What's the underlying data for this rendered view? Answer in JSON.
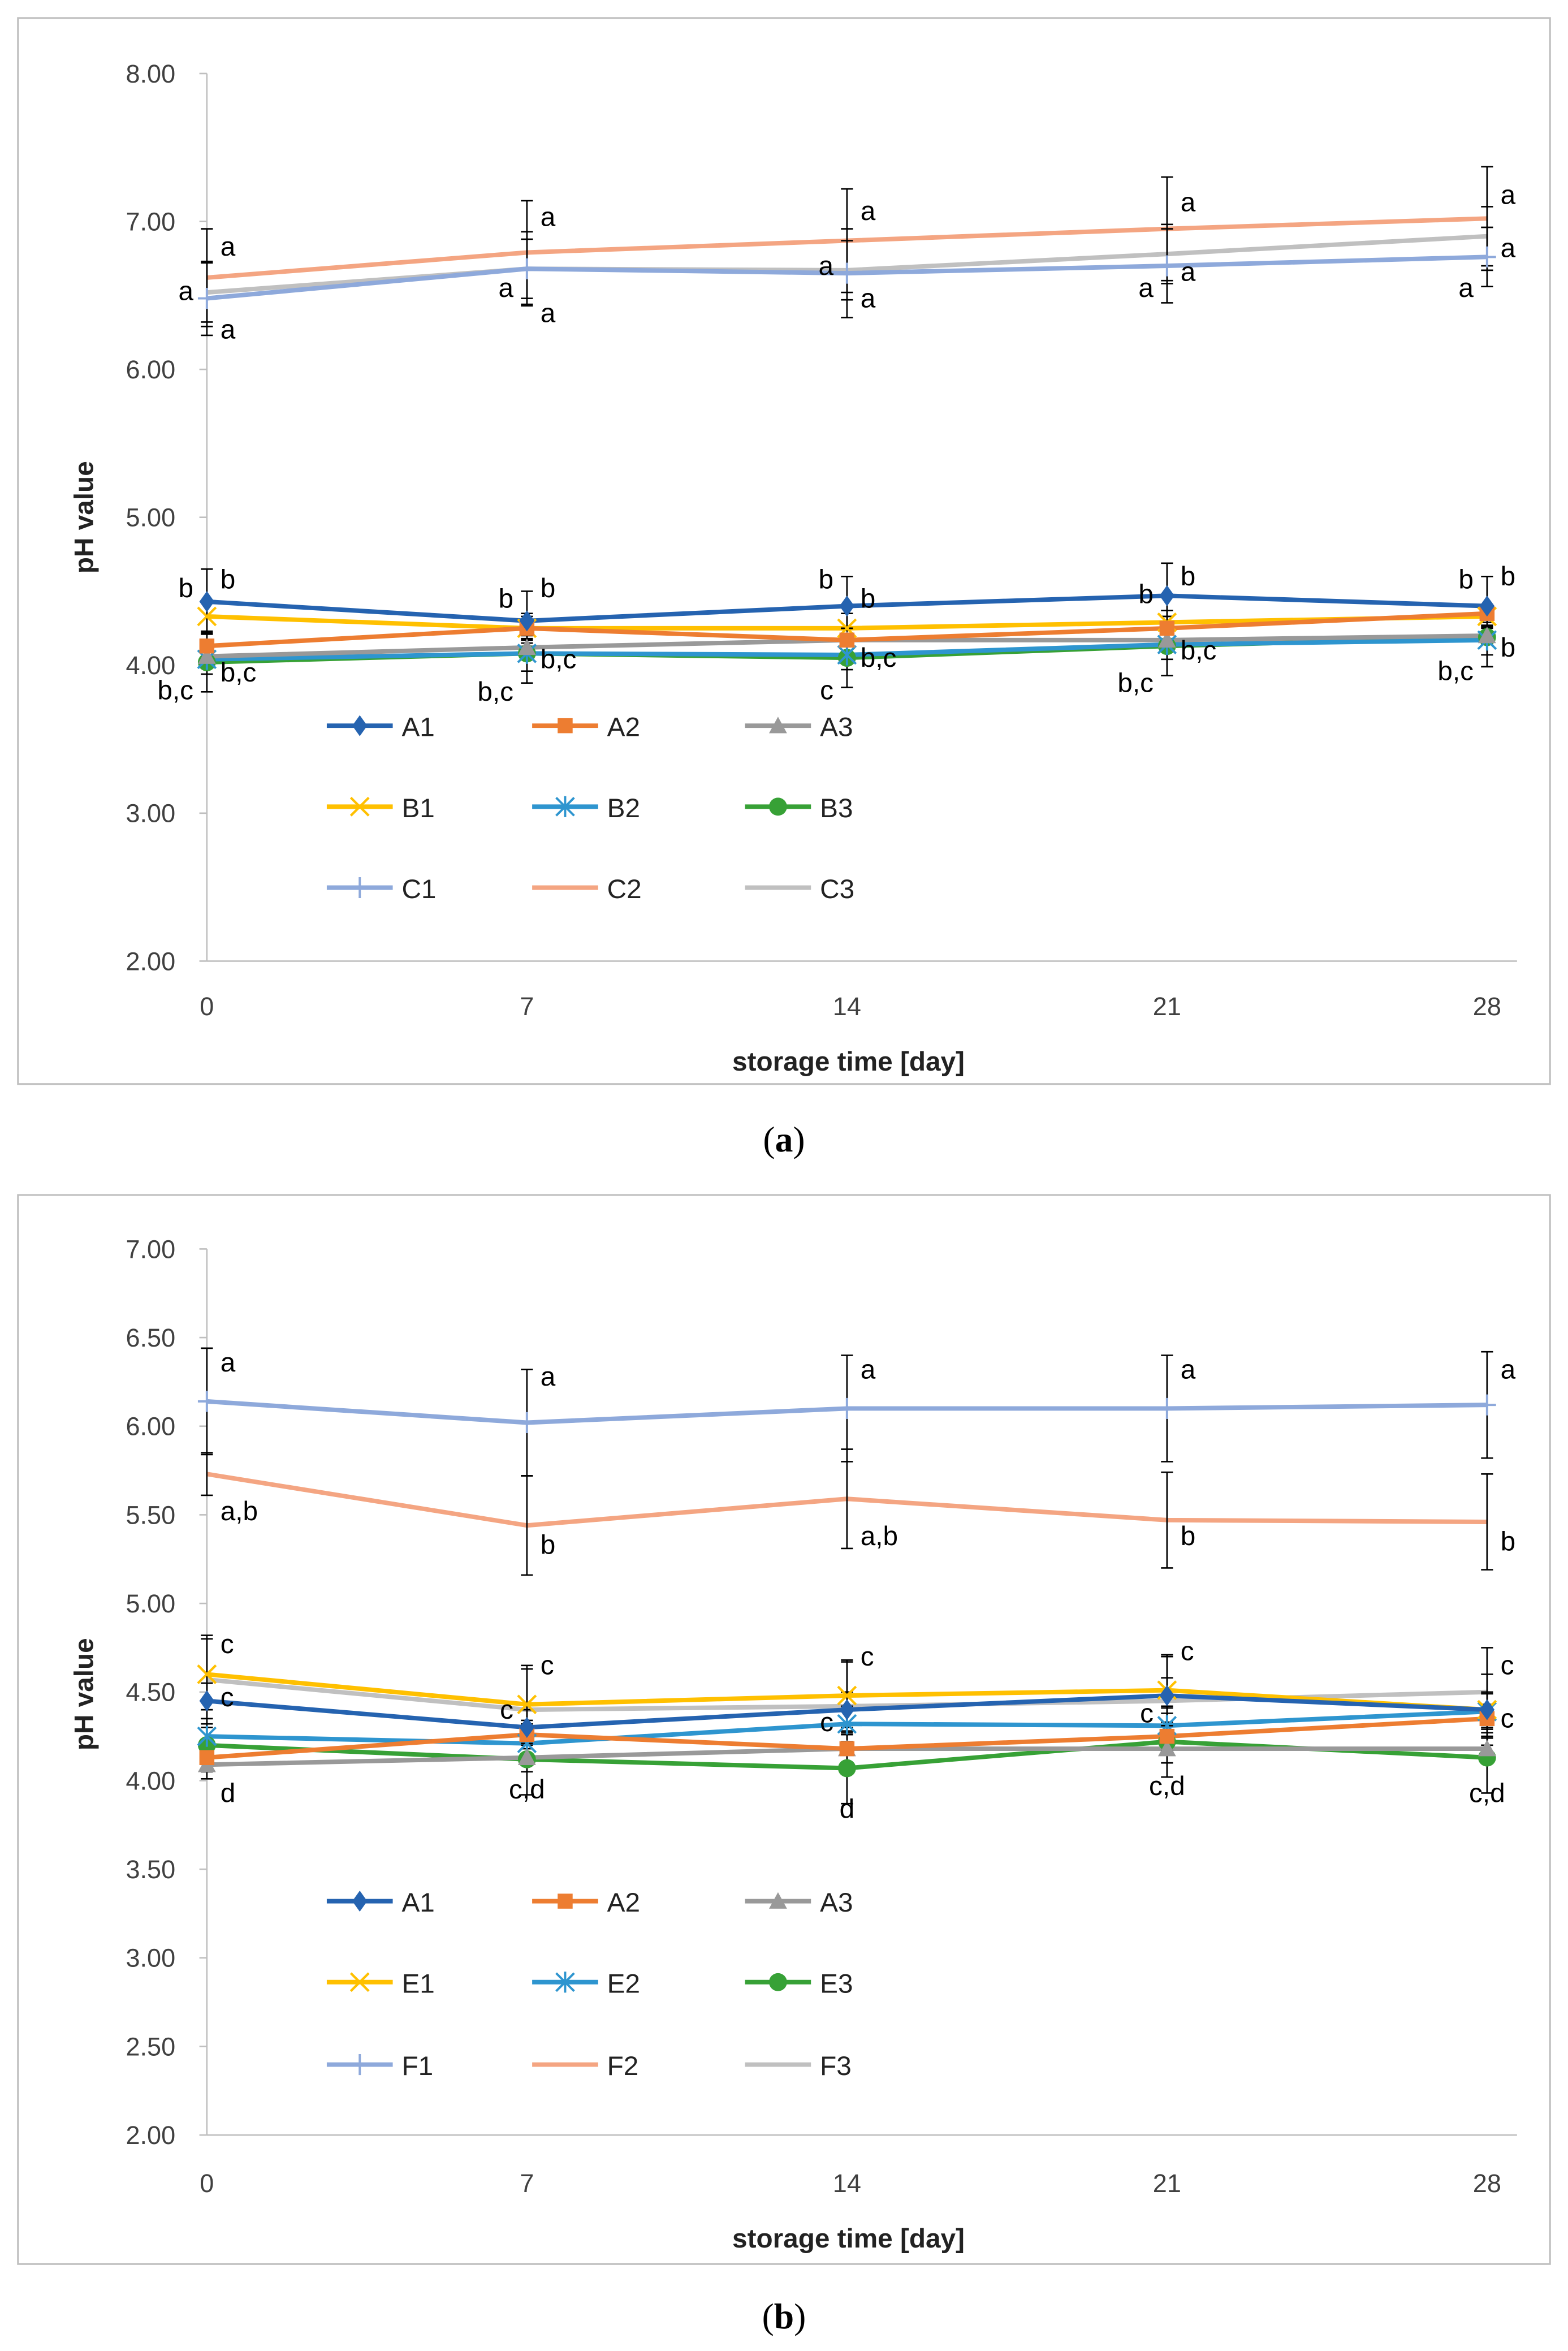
{
  "chart_data": [
    {
      "type": "line",
      "panel_caption": "(a)",
      "caption_letter": "a",
      "xlabel": "storage time [day]",
      "ylabel": "pH value",
      "x": [
        0,
        7,
        14,
        21,
        28
      ],
      "x_tick_labels": [
        "0",
        "7",
        "14",
        "21",
        "28"
      ],
      "ylim": [
        2.0,
        8.0
      ],
      "y_ticks": [
        2,
        3,
        4,
        5,
        6,
        7,
        8
      ],
      "y_tick_labels": [
        "2.00",
        "3.00",
        "4.00",
        "5.00",
        "6.00",
        "7.00",
        "8.00"
      ],
      "grid": false,
      "legend_position": "bottom-left inside plot",
      "series": [
        {
          "name": "A1",
          "color": "#2563B0",
          "marker": "diamond",
          "values": [
            4.43,
            4.3,
            4.4,
            4.47,
            4.4
          ],
          "errors": [
            0.22,
            0.2,
            0.2,
            0.22,
            0.2
          ]
        },
        {
          "name": "A2",
          "color": "#ED7D31",
          "marker": "square",
          "values": [
            4.13,
            4.25,
            4.17,
            4.25,
            4.35
          ],
          "errors": [
            0.08,
            0.08,
            0.08,
            0.08,
            0.06
          ]
        },
        {
          "name": "A3",
          "color": "#999999",
          "marker": "triangle",
          "values": [
            4.06,
            4.12,
            4.17,
            4.17,
            4.2
          ],
          "errors": [
            0.08,
            0.06,
            0.08,
            0.06,
            0.06
          ]
        },
        {
          "name": "B1",
          "color": "#FFC000",
          "marker": "x",
          "values": [
            4.33,
            4.25,
            4.25,
            4.29,
            4.33
          ],
          "errors": [
            0.1,
            0.1,
            0.1,
            0.08,
            0.08
          ]
        },
        {
          "name": "B2",
          "color": "#2E95CF",
          "marker": "asterisk",
          "values": [
            4.04,
            4.08,
            4.07,
            4.14,
            4.17
          ],
          "errors": [
            0.1,
            0.12,
            0.1,
            0.1,
            0.1
          ]
        },
        {
          "name": "B3",
          "color": "#37A136",
          "marker": "circle",
          "values": [
            4.02,
            4.08,
            4.05,
            4.13,
            4.19
          ],
          "errors": [
            0.2,
            0.2,
            0.2,
            0.2,
            0.2
          ]
        },
        {
          "name": "C1",
          "color": "#8EA9DB",
          "marker": "plus",
          "values": [
            6.48,
            6.68,
            6.65,
            6.7,
            6.76
          ],
          "errors": [
            0.25,
            0.25,
            0.3,
            0.25,
            0.2
          ]
        },
        {
          "name": "C2",
          "color": "#F4A582",
          "marker": "none",
          "values": [
            6.62,
            6.79,
            6.87,
            6.95,
            7.02
          ],
          "errors": [
            0.33,
            0.35,
            0.35,
            0.35,
            0.35
          ]
        },
        {
          "name": "C3",
          "color": "#C0C0C0",
          "marker": "none",
          "values": [
            6.52,
            6.68,
            6.67,
            6.78,
            6.9
          ],
          "errors": [
            0.2,
            0.2,
            0.2,
            0.2,
            0.2
          ]
        }
      ],
      "annotations": [
        {
          "day": 0,
          "y": 6.83,
          "side": "right",
          "text": "a"
        },
        {
          "day": 0,
          "y": 6.53,
          "side": "left",
          "text": "a"
        },
        {
          "day": 0,
          "y": 6.27,
          "side": "right",
          "text": "a"
        },
        {
          "day": 0,
          "y": 4.52,
          "side": "left",
          "text": "b"
        },
        {
          "day": 0,
          "y": 4.58,
          "side": "right",
          "text": "b"
        },
        {
          "day": 0,
          "y": 3.95,
          "side": "right",
          "text": "b,c"
        },
        {
          "day": 0,
          "y": 3.83,
          "side": "left",
          "text": "b,c"
        },
        {
          "day": 7,
          "y": 7.03,
          "side": "right",
          "text": "a"
        },
        {
          "day": 7,
          "y": 6.55,
          "side": "left",
          "text": "a"
        },
        {
          "day": 7,
          "y": 6.38,
          "side": "right",
          "text": "a"
        },
        {
          "day": 7,
          "y": 4.45,
          "side": "left",
          "text": "b"
        },
        {
          "day": 7,
          "y": 4.52,
          "side": "right",
          "text": "b"
        },
        {
          "day": 7,
          "y": 4.04,
          "side": "right",
          "text": "b,c"
        },
        {
          "day": 7,
          "y": 3.82,
          "side": "left",
          "text": "b,c"
        },
        {
          "day": 14,
          "y": 7.07,
          "side": "right",
          "text": "a"
        },
        {
          "day": 14,
          "y": 6.7,
          "side": "left",
          "text": "a"
        },
        {
          "day": 14,
          "y": 6.48,
          "side": "right",
          "text": "a"
        },
        {
          "day": 14,
          "y": 4.58,
          "side": "left",
          "text": "b"
        },
        {
          "day": 14,
          "y": 4.45,
          "side": "right",
          "text": "b"
        },
        {
          "day": 14,
          "y": 4.05,
          "side": "right",
          "text": "b,c"
        },
        {
          "day": 14,
          "y": 3.83,
          "side": "left",
          "text": "c"
        },
        {
          "day": 21,
          "y": 7.13,
          "side": "right",
          "text": "a"
        },
        {
          "day": 21,
          "y": 6.66,
          "side": "right",
          "text": "a"
        },
        {
          "day": 21,
          "y": 6.55,
          "side": "left",
          "text": "a"
        },
        {
          "day": 21,
          "y": 4.48,
          "side": "left",
          "text": "b"
        },
        {
          "day": 21,
          "y": 4.6,
          "side": "right",
          "text": "b"
        },
        {
          "day": 21,
          "y": 4.1,
          "side": "right",
          "text": "b,c"
        },
        {
          "day": 21,
          "y": 3.88,
          "side": "left",
          "text": "b,c"
        },
        {
          "day": 28,
          "y": 7.18,
          "side": "right",
          "text": "a"
        },
        {
          "day": 28,
          "y": 6.82,
          "side": "right",
          "text": "a"
        },
        {
          "day": 28,
          "y": 6.55,
          "side": "left",
          "text": "a"
        },
        {
          "day": 28,
          "y": 4.58,
          "side": "left",
          "text": "b"
        },
        {
          "day": 28,
          "y": 4.6,
          "side": "right",
          "text": "b"
        },
        {
          "day": 28,
          "y": 4.12,
          "side": "right",
          "text": "b"
        },
        {
          "day": 28,
          "y": 3.96,
          "side": "left",
          "text": "b,c"
        }
      ]
    },
    {
      "type": "line",
      "panel_caption": "(b)",
      "caption_letter": "b",
      "xlabel": "storage time [day]",
      "ylabel": "pH value",
      "x": [
        0,
        7,
        14,
        21,
        28
      ],
      "x_tick_labels": [
        "0",
        "7",
        "14",
        "21",
        "28"
      ],
      "ylim": [
        2.0,
        7.0
      ],
      "y_ticks": [
        2,
        2.5,
        3,
        3.5,
        4,
        4.5,
        5,
        5.5,
        6,
        6.5,
        7
      ],
      "y_tick_labels": [
        "2.00",
        "2.50",
        "3.00",
        "3.50",
        "4.00",
        "4.50",
        "5.00",
        "5.50",
        "6.00",
        "6.50",
        "7.00"
      ],
      "grid": false,
      "legend_position": "bottom-left inside plot",
      "series": [
        {
          "name": "A1",
          "color": "#2563B0",
          "marker": "diamond",
          "values": [
            4.45,
            4.3,
            4.4,
            4.48,
            4.4
          ],
          "errors": [
            0.1,
            0.1,
            0.1,
            0.1,
            0.1
          ]
        },
        {
          "name": "A2",
          "color": "#ED7D31",
          "marker": "square",
          "values": [
            4.13,
            4.26,
            4.18,
            4.25,
            4.35
          ],
          "errors": [
            0.08,
            0.08,
            0.08,
            0.08,
            0.08
          ]
        },
        {
          "name": "A3",
          "color": "#999999",
          "marker": "triangle",
          "values": [
            4.09,
            4.13,
            4.18,
            4.18,
            4.18
          ],
          "errors": [
            0.08,
            0.08,
            0.08,
            0.08,
            0.06
          ]
        },
        {
          "name": "E1",
          "color": "#FFC000",
          "marker": "x",
          "values": [
            4.6,
            4.43,
            4.48,
            4.51,
            4.4
          ],
          "errors": [
            0.2,
            0.2,
            0.2,
            0.2,
            0.2
          ]
        },
        {
          "name": "E2",
          "color": "#2E95CF",
          "marker": "asterisk",
          "values": [
            4.25,
            4.21,
            4.32,
            4.31,
            4.39
          ],
          "errors": [
            0.1,
            0.1,
            0.1,
            0.1,
            0.1
          ]
        },
        {
          "name": "E3",
          "color": "#37A136",
          "marker": "circle",
          "values": [
            4.2,
            4.12,
            4.07,
            4.22,
            4.13
          ],
          "errors": [
            0.1,
            0.2,
            0.2,
            0.2,
            0.2
          ]
        },
        {
          "name": "F1",
          "color": "#8EA9DB",
          "marker": "plus",
          "values": [
            6.14,
            6.02,
            6.1,
            6.1,
            6.12
          ],
          "errors": [
            0.3,
            0.3,
            0.3,
            0.3,
            0.3
          ]
        },
        {
          "name": "F2",
          "color": "#F4A582",
          "marker": "none",
          "values": [
            5.73,
            5.44,
            5.59,
            5.47,
            5.46
          ],
          "errors": [
            0.12,
            0.28,
            0.28,
            0.27,
            0.27
          ]
        },
        {
          "name": "F3",
          "color": "#C0C0C0",
          "marker": "none",
          "values": [
            4.57,
            4.4,
            4.42,
            4.45,
            4.5
          ],
          "errors": [
            0.25,
            0.25,
            0.25,
            0.25,
            0.25
          ]
        }
      ],
      "annotations": [
        {
          "day": 0,
          "y": 6.36,
          "side": "right",
          "text": "a"
        },
        {
          "day": 0,
          "y": 5.52,
          "side": "right",
          "text": "a,b"
        },
        {
          "day": 0,
          "y": 4.77,
          "side": "right",
          "text": "c"
        },
        {
          "day": 0,
          "y": 4.47,
          "side": "right",
          "text": "c"
        },
        {
          "day": 0,
          "y": 3.93,
          "side": "right",
          "text": "d"
        },
        {
          "day": 7,
          "y": 6.28,
          "side": "right",
          "text": "a"
        },
        {
          "day": 7,
          "y": 5.33,
          "side": "right",
          "text": "b"
        },
        {
          "day": 7,
          "y": 4.65,
          "side": "right",
          "text": "c"
        },
        {
          "day": 7,
          "y": 4.4,
          "side": "left",
          "text": "c"
        },
        {
          "day": 7,
          "y": 3.95,
          "side": "center",
          "text": "c,d"
        },
        {
          "day": 14,
          "y": 6.32,
          "side": "right",
          "text": "a"
        },
        {
          "day": 14,
          "y": 5.38,
          "side": "right",
          "text": "a,b"
        },
        {
          "day": 14,
          "y": 4.7,
          "side": "right",
          "text": "c"
        },
        {
          "day": 14,
          "y": 4.33,
          "side": "left",
          "text": "c"
        },
        {
          "day": 14,
          "y": 3.84,
          "side": "center",
          "text": "d"
        },
        {
          "day": 21,
          "y": 6.32,
          "side": "right",
          "text": "a"
        },
        {
          "day": 21,
          "y": 5.38,
          "side": "right",
          "text": "b"
        },
        {
          "day": 21,
          "y": 4.73,
          "side": "right",
          "text": "c"
        },
        {
          "day": 21,
          "y": 4.38,
          "side": "left",
          "text": "c"
        },
        {
          "day": 21,
          "y": 3.97,
          "side": "center",
          "text": "c,d"
        },
        {
          "day": 28,
          "y": 6.32,
          "side": "right",
          "text": "a"
        },
        {
          "day": 28,
          "y": 5.35,
          "side": "right",
          "text": "b"
        },
        {
          "day": 28,
          "y": 4.65,
          "side": "right",
          "text": "c"
        },
        {
          "day": 28,
          "y": 4.35,
          "side": "right",
          "text": "c"
        },
        {
          "day": 28,
          "y": 3.93,
          "side": "center",
          "text": "c,d"
        }
      ]
    }
  ]
}
